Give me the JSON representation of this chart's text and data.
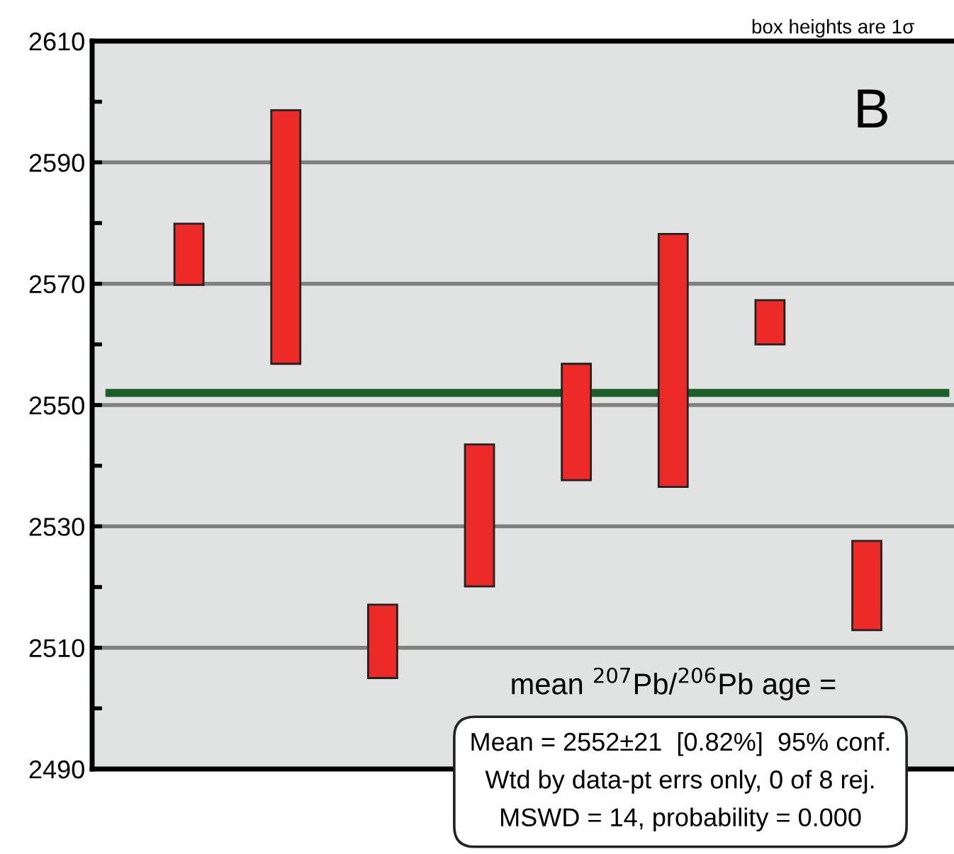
{
  "chart_data": {
    "type": "bar",
    "categories": [
      null,
      null,
      null,
      null,
      null,
      null,
      null,
      null
    ],
    "base": [
      2569.8,
      2556.8,
      2505,
      2520.1,
      2537.6,
      2536.5,
      2560,
      2512.9
    ],
    "values": [
      10.1,
      41.8,
      12.1,
      23.4,
      19.2,
      41.7,
      7.3,
      14.7
    ],
    "color": "#ec2a27",
    "ylim": [
      2490,
      2610
    ],
    "yticks": [
      2490,
      {
        "value": 2500,
        "label": null
      },
      2510,
      {
        "value": 2520,
        "label": null
      },
      2530,
      {
        "value": 2540,
        "label": null
      },
      2550,
      {
        "value": 2560,
        "label": null
      },
      2570,
      {
        "value": 2580,
        "label": null
      },
      2590,
      {
        "value": 2600,
        "label": null
      },
      2610
    ],
    "grid": "y",
    "ref_lines": [
      {
        "axis": "y",
        "value": 2552,
        "label": null,
        "color": "#1a5e2a"
      }
    ],
    "annotations": [
      "box heights are 1σ",
      "B",
      "mean $^{207}$Pb/$^{206}$Pb age =",
      "Mean = 2552±21  [0.82%]  95% conf.\nWtd by data-pt errs only, 0 of 8 rej.\nMSWD = 14, probability = 0.000"
    ]
  }
}
